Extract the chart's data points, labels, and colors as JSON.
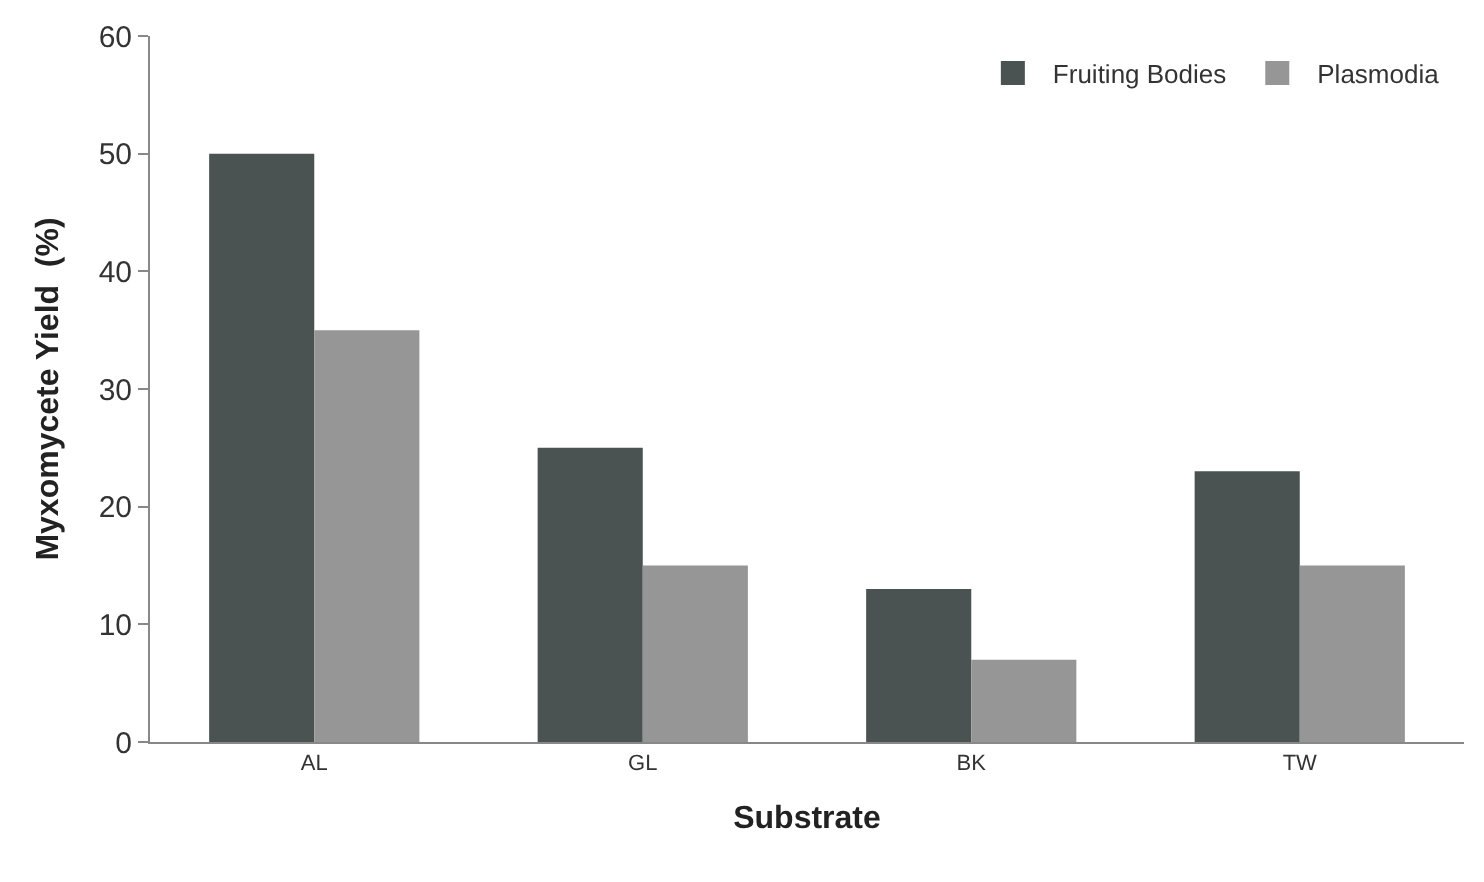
{
  "chart_data": {
    "type": "bar",
    "xlabel": "Substrate",
    "ylabel": "Myxomycete Yield  (%)",
    "categories": [
      "AL",
      "GL",
      "BK",
      "TW"
    ],
    "series": [
      {
        "name": "Fruiting Bodies",
        "color": "#4b5352",
        "values": [
          50,
          25,
          13,
          23
        ]
      },
      {
        "name": "Plasmodia",
        "color": "#969696",
        "values": [
          35,
          15,
          7,
          15
        ]
      }
    ],
    "ylim": [
      0,
      60
    ],
    "yticks": [
      0,
      10,
      20,
      30,
      40,
      50,
      60
    ],
    "legend": "top right"
  }
}
